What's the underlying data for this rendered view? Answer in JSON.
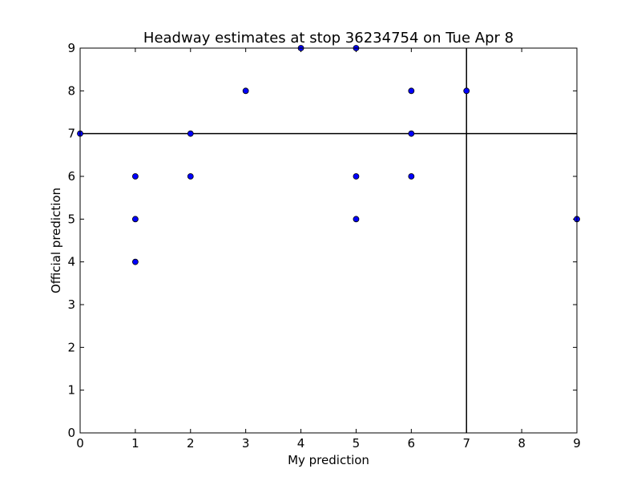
{
  "chart_data": {
    "type": "scatter",
    "title": "Headway estimates at stop 36234754 on Tue Apr 8",
    "xlabel": "My prediction",
    "ylabel": "Official prediction",
    "xlim": [
      0,
      9
    ],
    "ylim": [
      0,
      9
    ],
    "xticks": [
      "0",
      "1",
      "2",
      "3",
      "4",
      "5",
      "6",
      "7",
      "8",
      "9"
    ],
    "yticks": [
      "0",
      "1",
      "2",
      "3",
      "4",
      "5",
      "6",
      "7",
      "8",
      "9"
    ],
    "grid": false,
    "reference_lines": {
      "x": 7,
      "y": 7
    },
    "marker_color": "#0000ff",
    "marker_edge_color": "#000000",
    "points": [
      {
        "x": 0,
        "y": 7
      },
      {
        "x": 1,
        "y": 6
      },
      {
        "x": 1,
        "y": 5
      },
      {
        "x": 1,
        "y": 4
      },
      {
        "x": 2,
        "y": 7
      },
      {
        "x": 2,
        "y": 6
      },
      {
        "x": 3,
        "y": 8
      },
      {
        "x": 4,
        "y": 9
      },
      {
        "x": 5,
        "y": 9
      },
      {
        "x": 5,
        "y": 6
      },
      {
        "x": 5,
        "y": 5
      },
      {
        "x": 6,
        "y": 8
      },
      {
        "x": 6,
        "y": 7
      },
      {
        "x": 6,
        "y": 6
      },
      {
        "x": 7,
        "y": 8
      },
      {
        "x": 9,
        "y": 5
      }
    ]
  }
}
